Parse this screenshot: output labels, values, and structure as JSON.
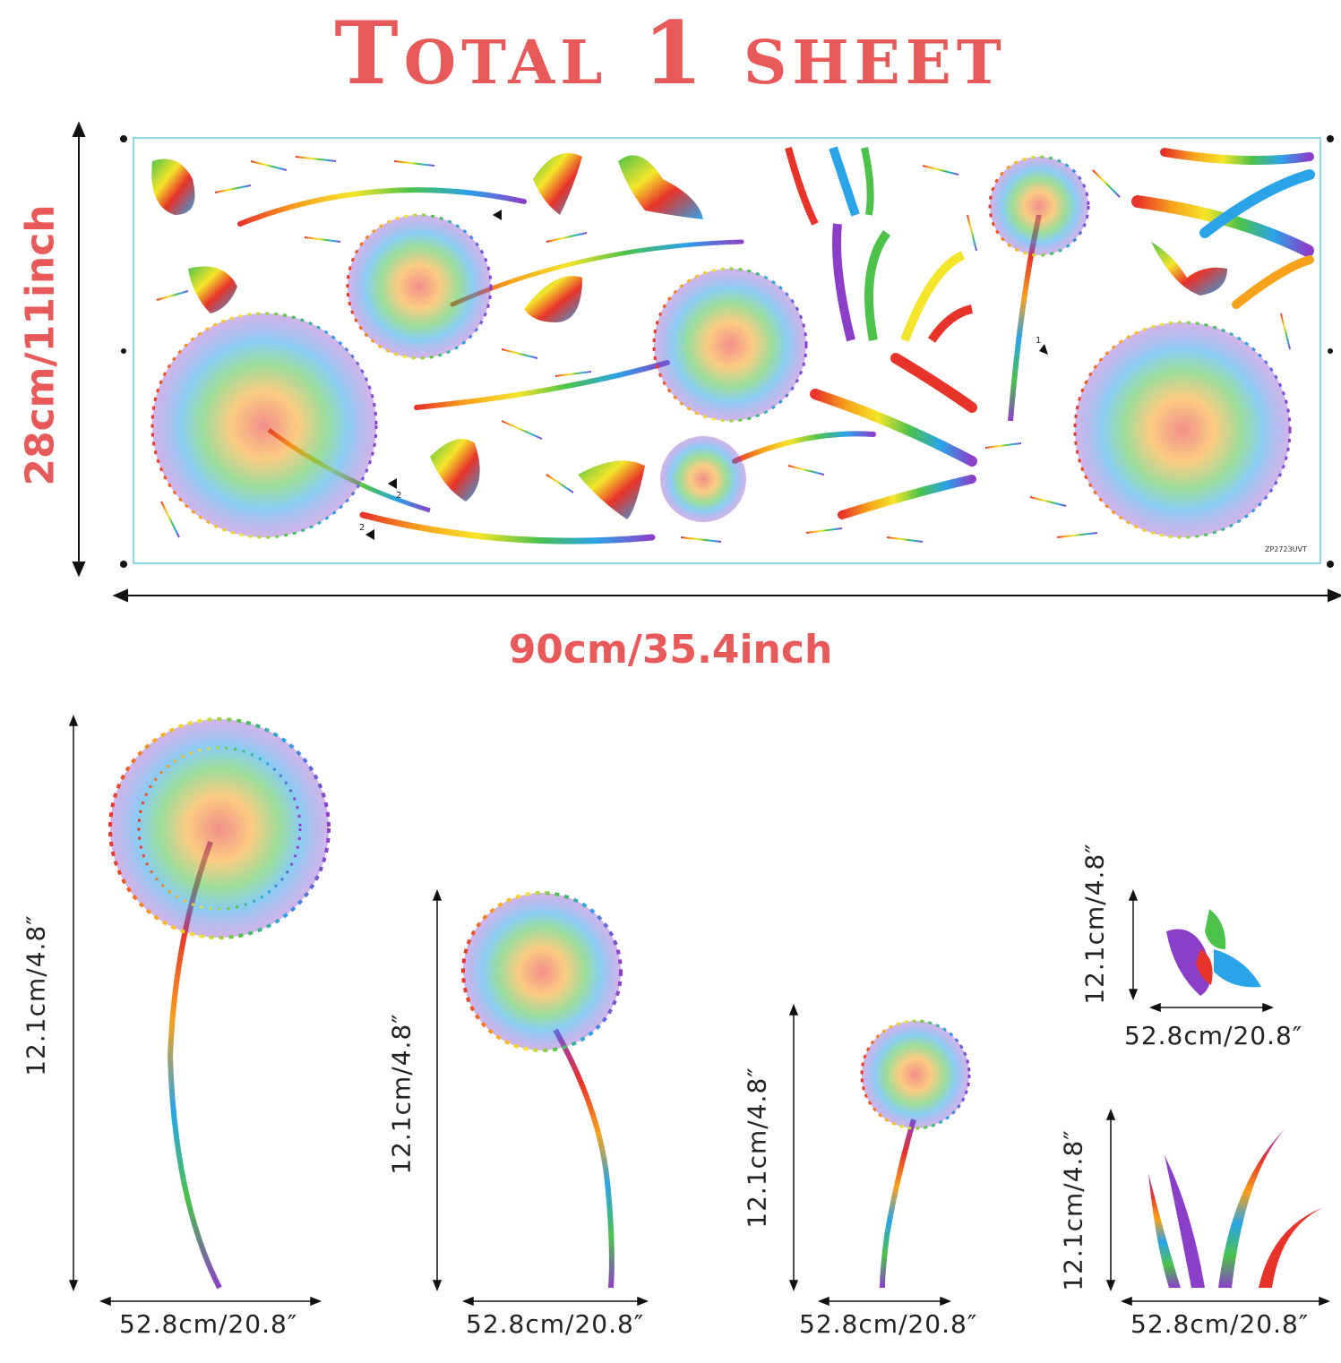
{
  "title": "Total 1 sheet",
  "sheet": {
    "width_label": "90cm/35.4inch",
    "height_label": "28cm/11inch",
    "code": "ZP2723UVT",
    "markers": [
      "1",
      "2",
      "2"
    ]
  },
  "items": [
    {
      "name": "large-dandelion",
      "height_label": "12.1cm/4.8″",
      "width_label": "52.8cm/20.8″"
    },
    {
      "name": "medium-dandelion",
      "height_label": "12.1cm/4.8″",
      "width_label": "52.8cm/20.8″"
    },
    {
      "name": "small-dandelion",
      "height_label": "12.1cm/4.8″",
      "width_label": "52.8cm/20.8″"
    },
    {
      "name": "butterfly",
      "height_label": "12.1cm/4.8″",
      "width_label": "52.8cm/20.8″"
    },
    {
      "name": "grass",
      "height_label": "12.1cm/4.8″",
      "width_label": "52.8cm/20.8″"
    }
  ]
}
